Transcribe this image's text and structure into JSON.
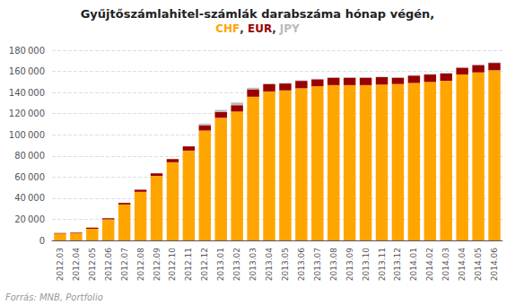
{
  "chart_data": {
    "type": "bar",
    "title": "Gyűjtőszámlahitel-számlák darabszáma hónap végén,",
    "subtitle": "CHF, EUR, JPY",
    "annotation": "Forrás: MNB, Portfolio",
    "categories": [
      "2012.03",
      "2012.04",
      "2012.05",
      "2012.06",
      "2012.07",
      "2012.08",
      "2012.09",
      "2012.10",
      "2012.11",
      "2012.12",
      "2013.01",
      "2013.02",
      "2013.03",
      "2013.04",
      "2013.05",
      "2013.06",
      "2013.07",
      "2013.08",
      "2013.09",
      "2013.10",
      "2013.11",
      "2013.12",
      "2014.01",
      "2014.02",
      "2014.03",
      "2014.04",
      "2014.05",
      "2014.06"
    ],
    "series": [
      {
        "name": "CHF",
        "color": "#FFA500",
        "values": [
          6500,
          7000,
          11000,
          20000,
          34000,
          46000,
          61000,
          74000,
          85000,
          104000,
          116000,
          122000,
          136000,
          141000,
          142000,
          144000,
          146000,
          147000,
          147000,
          147000,
          147500,
          148000,
          149000,
          150000,
          151000,
          157000,
          159000,
          161000
        ]
      },
      {
        "name": "EUR",
        "color": "#990000",
        "values": [
          500,
          500,
          1000,
          1000,
          1500,
          2000,
          2500,
          3000,
          4000,
          5000,
          5500,
          6000,
          7000,
          7000,
          6500,
          7000,
          6500,
          7000,
          7000,
          7000,
          7000,
          6000,
          7000,
          7000,
          7000,
          6500,
          7000,
          7000
        ]
      },
      {
        "name": "JPY",
        "color": "#BBBBBB",
        "values": [
          0,
          0,
          0,
          0,
          0,
          0,
          0,
          0,
          0,
          1500,
          2000,
          2500,
          1500,
          500,
          500,
          500,
          500,
          500,
          500,
          500,
          500,
          500,
          500,
          500,
          500,
          500,
          500,
          500
        ]
      }
    ],
    "stacked": true,
    "ylim": [
      0,
      180000
    ],
    "yticks": [
      0,
      {
        "value": 20000,
        "label": "20 000"
      },
      {
        "value": 40000,
        "label": "40 000"
      },
      {
        "value": 60000,
        "label": "60 000"
      },
      {
        "value": 80000,
        "label": "80 000"
      },
      {
        "value": 100000,
        "label": "100 000"
      },
      {
        "value": 120000,
        "label": "120 000"
      },
      {
        "value": 140000,
        "label": "140 000"
      },
      {
        "value": 160000,
        "label": "160 000"
      },
      {
        "value": 180000,
        "label": "180 000"
      }
    ],
    "grid": true
  }
}
